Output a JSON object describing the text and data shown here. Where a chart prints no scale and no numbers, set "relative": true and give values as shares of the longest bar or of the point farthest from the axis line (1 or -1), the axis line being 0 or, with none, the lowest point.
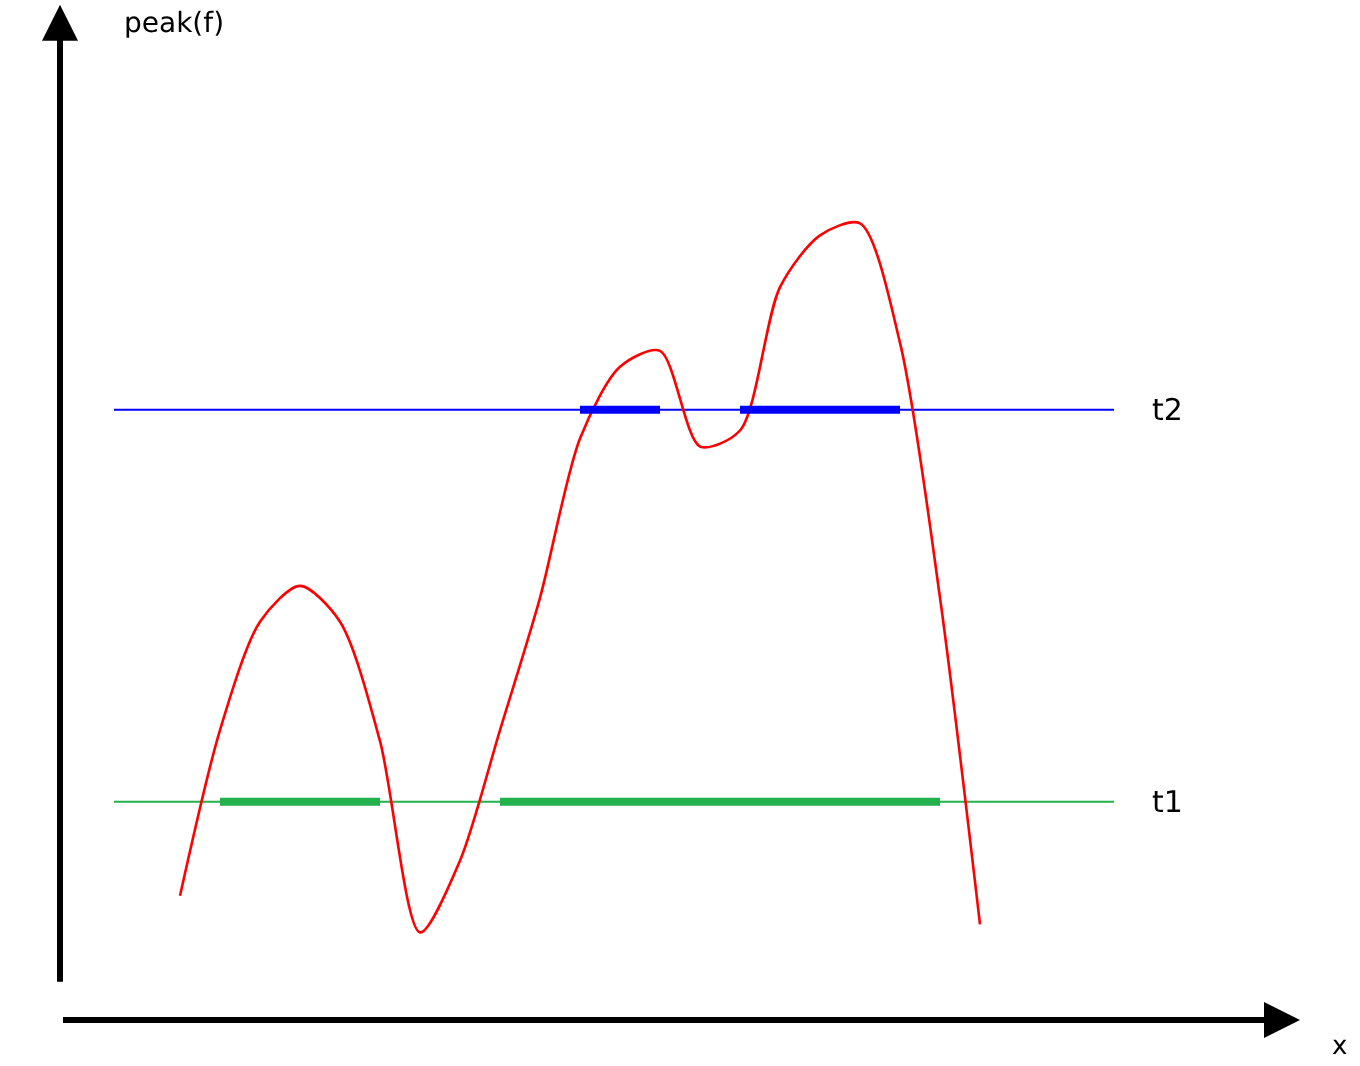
{
  "chart_data": {
    "type": "line",
    "relative": true,
    "annotations": [
      "peak(f)",
      "x"
    ],
    "categories": [
      null,
      null,
      null,
      null,
      null,
      null,
      null,
      null,
      null,
      null,
      null,
      null,
      null,
      null,
      null,
      null,
      null,
      null,
      null,
      null,
      null
    ],
    "series": [
      {
        "color": "#ff0000",
        "values": [
          0.156,
          0.364,
          0.5,
          0.545,
          0.5,
          0.35,
          0.11,
          0.2,
          0.364,
          0.53,
          0.73,
          0.82,
          0.84,
          0.72,
          0.74,
          0.92,
          0.985,
          1.0,
          0.85,
          0.53,
          0.12
        ]
      },
      {
        "color": "#22b14c",
        "values": [
          null,
          0.274,
          0.274,
          0.274,
          0.274,
          0.274,
          null,
          null,
          0.274,
          0.274,
          0.274,
          0.274,
          0.274,
          0.274,
          0.274,
          0.274,
          0.274,
          0.274,
          0.274,
          0.274,
          null
        ]
      },
      {
        "color": "#0000ff",
        "values": [
          null,
          null,
          null,
          null,
          null,
          null,
          null,
          null,
          null,
          null,
          0.766,
          0.766,
          0.766,
          null,
          0.766,
          0.766,
          0.766,
          0.766,
          0.766,
          null,
          null
        ]
      }
    ],
    "ref_lines": [
      {
        "axis": "y",
        "value": 0.274,
        "label": "t1",
        "color": "#22b14c"
      },
      {
        "axis": "y",
        "value": 0.766,
        "label": "t2",
        "color": "#0000ff"
      }
    ],
    "marker": "none",
    "line_style": "solid"
  }
}
